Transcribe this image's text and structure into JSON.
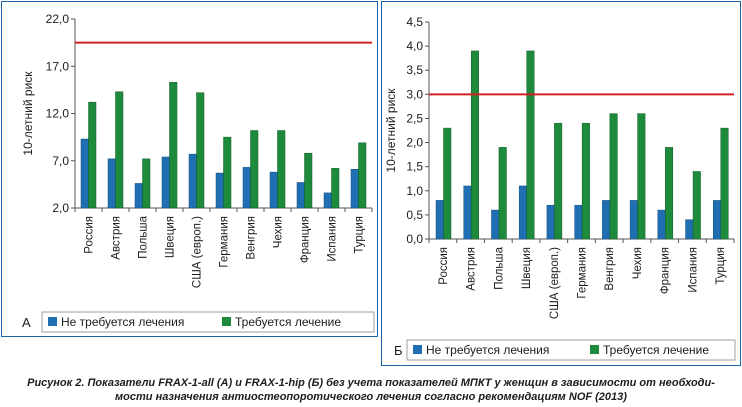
{
  "figure": {
    "caption_line1": "Рисунок 2. Показатели FRAX-1-all (А) и FRAX-1-hip (Б) без учета показателей МПКТ у женщин в зависимости от необходи-",
    "caption_line2": "мости назначения антиостеопоротического лечения согласно рекомендациям NOF (2013)"
  },
  "colors": {
    "not_required": "#1f6fb2",
    "required": "#1e8a3c",
    "threshold_line": "#d42020",
    "frame": "#1a63a8",
    "axis": "#555555"
  },
  "chart_data": [
    {
      "panel_label": "А",
      "type": "bar",
      "ylabel": "10-летний риск",
      "yticks": [
        "2,0",
        "7,0",
        "12,0",
        "17,0",
        "22,0"
      ],
      "ylim": [
        2,
        22
      ],
      "categories": [
        "Россия",
        "Австрия",
        "Польша",
        "Швеция",
        "США (европ.)",
        "Германия",
        "Венгрия",
        "Чехия",
        "Франция",
        "Испания",
        "Турция"
      ],
      "series": [
        {
          "name": "Не требуется лечения",
          "values": [
            9.3,
            7.2,
            4.6,
            7.4,
            7.7,
            5.7,
            6.3,
            5.8,
            4.7,
            3.6,
            6.1
          ]
        },
        {
          "name": "Требуется лечение",
          "values": [
            13.2,
            14.3,
            7.2,
            15.3,
            14.2,
            9.5,
            10.2,
            10.2,
            7.8,
            6.2,
            8.9
          ]
        }
      ],
      "threshold": 19.5,
      "grid": false,
      "legend_position": "bottom"
    },
    {
      "panel_label": "Б",
      "type": "bar",
      "ylabel": "10-летний риск",
      "yticks": [
        "0,0",
        "0,5",
        "1,0",
        "1,5",
        "2,0",
        "2,5",
        "3,0",
        "3,5",
        "4,0",
        "4,5"
      ],
      "ylim": [
        0,
        4.5
      ],
      "categories": [
        "Россия",
        "Австрия",
        "Польша",
        "Швеция",
        "США (европ.)",
        "Германия",
        "Венгрия",
        "Чехия",
        "Франция",
        "Испания",
        "Турция"
      ],
      "series": [
        {
          "name": "Не требуется лечения",
          "values": [
            0.8,
            1.1,
            0.6,
            1.1,
            0.7,
            0.7,
            0.8,
            0.8,
            0.6,
            0.4,
            0.8
          ]
        },
        {
          "name": "Требуется лечение",
          "values": [
            2.3,
            3.9,
            1.9,
            3.9,
            2.4,
            2.4,
            2.6,
            2.6,
            1.9,
            1.4,
            2.3
          ]
        }
      ],
      "threshold": 3.0,
      "grid": false,
      "legend_position": "bottom"
    }
  ]
}
